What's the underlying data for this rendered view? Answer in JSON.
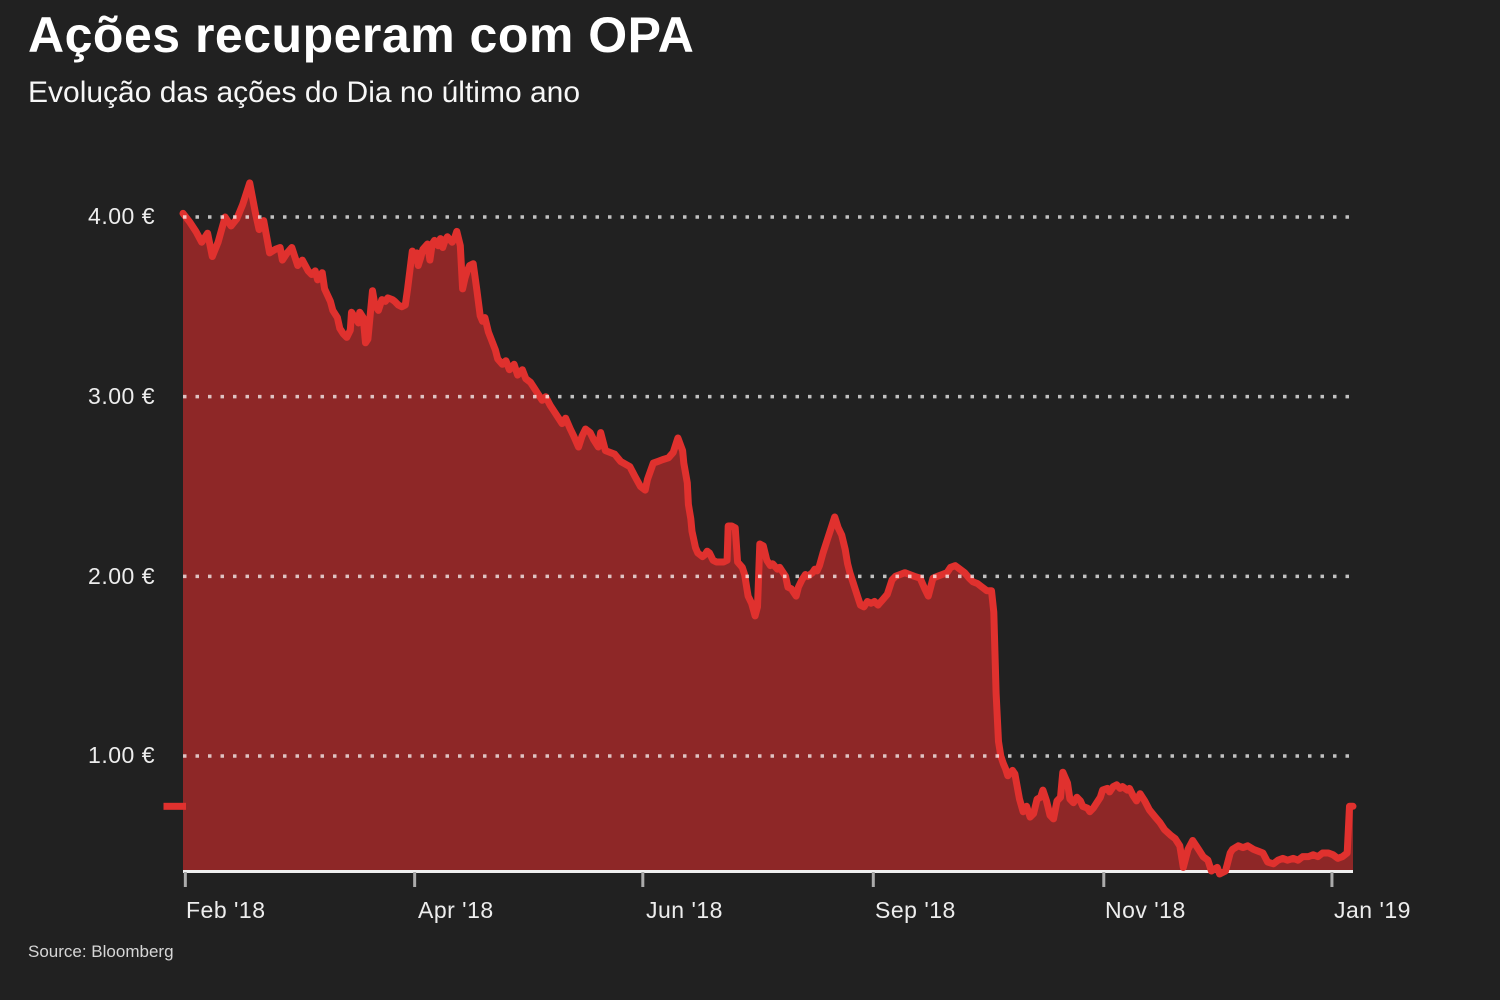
{
  "header": {
    "title": "Ações recuperam com OPA",
    "subtitle": "Evolução das ações do Dia no último ano"
  },
  "footer": {
    "source": "Source: Bloomberg"
  },
  "colors": {
    "background": "#212121",
    "line": "#e0312e",
    "fill": "#8e2727",
    "grid": "rgba(255,255,255,0.72)",
    "axis": "#f0f0f0",
    "tick": "#ababab",
    "text": "#ffffff"
  },
  "chart_data": {
    "type": "area",
    "title": "Ações recuperam com OPA",
    "subtitle": "Evolução das ações do Dia no último ano",
    "currency": "EUR",
    "ylim": [
      0.35,
      4.26
    ],
    "grid": "dotted-horizontal",
    "last_price": 0.72,
    "y_ticks": [
      {
        "value": 4.0,
        "label": "4.00 €"
      },
      {
        "value": 3.0,
        "label": "3.00 €"
      },
      {
        "value": 2.0,
        "label": "2.00 €"
      },
      {
        "value": 1.0,
        "label": "1.00 €"
      }
    ],
    "x_ticks": [
      {
        "f": 0.002,
        "label": "Feb '18"
      },
      {
        "f": 0.198,
        "label": "Apr '18"
      },
      {
        "f": 0.393,
        "label": "Jun '18"
      },
      {
        "f": 0.59,
        "label": "Sep '18"
      },
      {
        "f": 0.787,
        "label": "Nov '18"
      },
      {
        "f": 0.982,
        "label": "Jan '19"
      }
    ],
    "points": [
      [
        0,
        4.02
      ],
      [
        0.006,
        3.97
      ],
      [
        0.011,
        3.92
      ],
      [
        0.016,
        3.86
      ],
      [
        0.021,
        3.91
      ],
      [
        0.025,
        3.78
      ],
      [
        0.03,
        3.86
      ],
      [
        0.036,
        4.0
      ],
      [
        0.041,
        3.95
      ],
      [
        0.046,
        3.99
      ],
      [
        0.051,
        4.07
      ],
      [
        0.057,
        4.19
      ],
      [
        0.062,
        4.02
      ],
      [
        0.065,
        3.93
      ],
      [
        0.069,
        3.98
      ],
      [
        0.074,
        3.8
      ],
      [
        0.079,
        3.82
      ],
      [
        0.083,
        3.83
      ],
      [
        0.085,
        3.76
      ],
      [
        0.089,
        3.8
      ],
      [
        0.093,
        3.83
      ],
      [
        0.098,
        3.73
      ],
      [
        0.102,
        3.76
      ],
      [
        0.107,
        3.7
      ],
      [
        0.11,
        3.68
      ],
      [
        0.113,
        3.7
      ],
      [
        0.115,
        3.65
      ],
      [
        0.119,
        3.69
      ],
      [
        0.121,
        3.6
      ],
      [
        0.126,
        3.53
      ],
      [
        0.128,
        3.48
      ],
      [
        0.132,
        3.44
      ],
      [
        0.134,
        3.38
      ],
      [
        0.137,
        3.35
      ],
      [
        0.14,
        3.33
      ],
      [
        0.143,
        3.37
      ],
      [
        0.144,
        3.47
      ],
      [
        0.147,
        3.44
      ],
      [
        0.15,
        3.41
      ],
      [
        0.151,
        3.47
      ],
      [
        0.154,
        3.44
      ],
      [
        0.156,
        3.3
      ],
      [
        0.158,
        3.32
      ],
      [
        0.162,
        3.59
      ],
      [
        0.164,
        3.51
      ],
      [
        0.167,
        3.48
      ],
      [
        0.17,
        3.54
      ],
      [
        0.173,
        3.53
      ],
      [
        0.175,
        3.55
      ],
      [
        0.179,
        3.54
      ],
      [
        0.181,
        3.53
      ],
      [
        0.184,
        3.51
      ],
      [
        0.187,
        3.5
      ],
      [
        0.19,
        3.51
      ],
      [
        0.192,
        3.6
      ],
      [
        0.196,
        3.81
      ],
      [
        0.198,
        3.76
      ],
      [
        0.2,
        3.8
      ],
      [
        0.201,
        3.73
      ],
      [
        0.203,
        3.77
      ],
      [
        0.205,
        3.82
      ],
      [
        0.209,
        3.85
      ],
      [
        0.211,
        3.76
      ],
      [
        0.213,
        3.85
      ],
      [
        0.215,
        3.87
      ],
      [
        0.218,
        3.84
      ],
      [
        0.22,
        3.88
      ],
      [
        0.222,
        3.83
      ],
      [
        0.224,
        3.87
      ],
      [
        0.226,
        3.89
      ],
      [
        0.23,
        3.86
      ],
      [
        0.232,
        3.88
      ],
      [
        0.234,
        3.92
      ],
      [
        0.237,
        3.84
      ],
      [
        0.239,
        3.6
      ],
      [
        0.241,
        3.66
      ],
      [
        0.243,
        3.7
      ],
      [
        0.245,
        3.73
      ],
      [
        0.248,
        3.74
      ],
      [
        0.251,
        3.6
      ],
      [
        0.254,
        3.45
      ],
      [
        0.256,
        3.42
      ],
      [
        0.258,
        3.44
      ],
      [
        0.261,
        3.36
      ],
      [
        0.264,
        3.31
      ],
      [
        0.267,
        3.26
      ],
      [
        0.269,
        3.21
      ],
      [
        0.273,
        3.18
      ],
      [
        0.276,
        3.2
      ],
      [
        0.279,
        3.15
      ],
      [
        0.283,
        3.18
      ],
      [
        0.286,
        3.12
      ],
      [
        0.29,
        3.15
      ],
      [
        0.293,
        3.1
      ],
      [
        0.297,
        3.08
      ],
      [
        0.3,
        3.05
      ],
      [
        0.303,
        3.02
      ],
      [
        0.307,
        2.98
      ],
      [
        0.31,
        3.0
      ],
      [
        0.314,
        2.95
      ],
      [
        0.317,
        2.92
      ],
      [
        0.321,
        2.88
      ],
      [
        0.324,
        2.85
      ],
      [
        0.327,
        2.88
      ],
      [
        0.331,
        2.82
      ],
      [
        0.334,
        2.78
      ],
      [
        0.338,
        2.72
      ],
      [
        0.341,
        2.78
      ],
      [
        0.344,
        2.82
      ],
      [
        0.348,
        2.8
      ],
      [
        0.351,
        2.76
      ],
      [
        0.355,
        2.72
      ],
      [
        0.357,
        2.8
      ],
      [
        0.361,
        2.7
      ],
      [
        0.369,
        2.68
      ],
      [
        0.374,
        2.64
      ],
      [
        0.382,
        2.61
      ],
      [
        0.386,
        2.56
      ],
      [
        0.391,
        2.5
      ],
      [
        0.395,
        2.48
      ],
      [
        0.397,
        2.54
      ],
      [
        0.402,
        2.63
      ],
      [
        0.406,
        2.64
      ],
      [
        0.41,
        2.65
      ],
      [
        0.415,
        2.66
      ],
      [
        0.419,
        2.69
      ],
      [
        0.423,
        2.77
      ],
      [
        0.427,
        2.7
      ],
      [
        0.428,
        2.63
      ],
      [
        0.431,
        2.52
      ],
      [
        0.432,
        2.4
      ],
      [
        0.434,
        2.32
      ],
      [
        0.435,
        2.25
      ],
      [
        0.438,
        2.16
      ],
      [
        0.44,
        2.13
      ],
      [
        0.444,
        2.11
      ],
      [
        0.446,
        2.12
      ],
      [
        0.448,
        2.14
      ],
      [
        0.45,
        2.13
      ],
      [
        0.453,
        2.09
      ],
      [
        0.456,
        2.08
      ],
      [
        0.462,
        2.08
      ],
      [
        0.465,
        2.09
      ],
      [
        0.466,
        2.28
      ],
      [
        0.469,
        2.28
      ],
      [
        0.472,
        2.27
      ],
      [
        0.474,
        2.08
      ],
      [
        0.478,
        2.05
      ],
      [
        0.48,
        2.01
      ],
      [
        0.483,
        1.89
      ],
      [
        0.486,
        1.85
      ],
      [
        0.489,
        1.78
      ],
      [
        0.491,
        1.83
      ],
      [
        0.493,
        2.18
      ],
      [
        0.496,
        2.17
      ],
      [
        0.499,
        2.09
      ],
      [
        0.502,
        2.06
      ],
      [
        0.504,
        2.07
      ],
      [
        0.508,
        2.04
      ],
      [
        0.51,
        2.05
      ],
      [
        0.513,
        2.02
      ],
      [
        0.515,
        2.0
      ],
      [
        0.517,
        1.94
      ],
      [
        0.52,
        1.93
      ],
      [
        0.522,
        1.91
      ],
      [
        0.524,
        1.89
      ],
      [
        0.526,
        1.94
      ],
      [
        0.529,
        1.98
      ],
      [
        0.532,
        2.01
      ],
      [
        0.534,
        2.0
      ],
      [
        0.538,
        2.02
      ],
      [
        0.54,
        2.04
      ],
      [
        0.542,
        2.03
      ],
      [
        0.544,
        2.06
      ],
      [
        0.547,
        2.13
      ],
      [
        0.55,
        2.19
      ],
      [
        0.553,
        2.25
      ],
      [
        0.557,
        2.33
      ],
      [
        0.56,
        2.27
      ],
      [
        0.563,
        2.23
      ],
      [
        0.566,
        2.15
      ],
      [
        0.568,
        2.07
      ],
      [
        0.57,
        2.02
      ],
      [
        0.573,
        1.96
      ],
      [
        0.576,
        1.9
      ],
      [
        0.579,
        1.84
      ],
      [
        0.582,
        1.83
      ],
      [
        0.585,
        1.86
      ],
      [
        0.588,
        1.85
      ],
      [
        0.591,
        1.86
      ],
      [
        0.594,
        1.84
      ],
      [
        0.598,
        1.87
      ],
      [
        0.602,
        1.9
      ],
      [
        0.606,
        1.98
      ],
      [
        0.609,
        2.0
      ],
      [
        0.613,
        2.01
      ],
      [
        0.617,
        2.02
      ],
      [
        0.621,
        2.01
      ],
      [
        0.625,
        2.0
      ],
      [
        0.63,
        1.99
      ],
      [
        0.634,
        1.93
      ],
      [
        0.637,
        1.89
      ],
      [
        0.641,
        1.99
      ],
      [
        0.645,
        2.0
      ],
      [
        0.649,
        2.01
      ],
      [
        0.653,
        2.02
      ],
      [
        0.656,
        2.05
      ],
      [
        0.66,
        2.06
      ],
      [
        0.664,
        2.04
      ],
      [
        0.668,
        2.02
      ],
      [
        0.672,
        1.99
      ],
      [
        0.675,
        1.97
      ],
      [
        0.679,
        1.96
      ],
      [
        0.683,
        1.94
      ],
      [
        0.687,
        1.92
      ],
      [
        0.691,
        1.92
      ],
      [
        0.693,
        1.8
      ],
      [
        0.695,
        1.35
      ],
      [
        0.697,
        1.08
      ],
      [
        0.699,
        1.0
      ],
      [
        0.701,
        0.96
      ],
      [
        0.703,
        0.93
      ],
      [
        0.705,
        0.89
      ],
      [
        0.709,
        0.92
      ],
      [
        0.711,
        0.9
      ],
      [
        0.715,
        0.76
      ],
      [
        0.718,
        0.69
      ],
      [
        0.721,
        0.72
      ],
      [
        0.724,
        0.66
      ],
      [
        0.727,
        0.68
      ],
      [
        0.73,
        0.76
      ],
      [
        0.733,
        0.77
      ],
      [
        0.735,
        0.81
      ],
      [
        0.738,
        0.75
      ],
      [
        0.741,
        0.67
      ],
      [
        0.744,
        0.65
      ],
      [
        0.747,
        0.75
      ],
      [
        0.75,
        0.77
      ],
      [
        0.752,
        0.91
      ],
      [
        0.756,
        0.85
      ],
      [
        0.758,
        0.76
      ],
      [
        0.761,
        0.74
      ],
      [
        0.764,
        0.77
      ],
      [
        0.767,
        0.75
      ],
      [
        0.769,
        0.72
      ],
      [
        0.773,
        0.71
      ],
      [
        0.775,
        0.69
      ],
      [
        0.778,
        0.71
      ],
      [
        0.781,
        0.74
      ],
      [
        0.784,
        0.77
      ],
      [
        0.786,
        0.81
      ],
      [
        0.79,
        0.82
      ],
      [
        0.792,
        0.8
      ],
      [
        0.795,
        0.83
      ],
      [
        0.798,
        0.84
      ],
      [
        0.801,
        0.82
      ],
      [
        0.803,
        0.83
      ],
      [
        0.807,
        0.81
      ],
      [
        0.809,
        0.82
      ],
      [
        0.812,
        0.78
      ],
      [
        0.815,
        0.75
      ],
      [
        0.818,
        0.79
      ],
      [
        0.822,
        0.75
      ],
      [
        0.826,
        0.7
      ],
      [
        0.831,
        0.66
      ],
      [
        0.835,
        0.63
      ],
      [
        0.839,
        0.59
      ],
      [
        0.844,
        0.56
      ],
      [
        0.848,
        0.54
      ],
      [
        0.852,
        0.5
      ],
      [
        0.855,
        0.38
      ],
      [
        0.859,
        0.48
      ],
      [
        0.863,
        0.53
      ],
      [
        0.868,
        0.48
      ],
      [
        0.872,
        0.44
      ],
      [
        0.876,
        0.42
      ],
      [
        0.879,
        0.36
      ],
      [
        0.884,
        0.38
      ],
      [
        0.886,
        0.34
      ],
      [
        0.891,
        0.36
      ],
      [
        0.895,
        0.46
      ],
      [
        0.897,
        0.48
      ],
      [
        0.902,
        0.5
      ],
      [
        0.906,
        0.49
      ],
      [
        0.91,
        0.5
      ],
      [
        0.915,
        0.48
      ],
      [
        0.919,
        0.47
      ],
      [
        0.923,
        0.46
      ],
      [
        0.927,
        0.41
      ],
      [
        0.932,
        0.4
      ],
      [
        0.936,
        0.42
      ],
      [
        0.94,
        0.43
      ],
      [
        0.944,
        0.42
      ],
      [
        0.949,
        0.43
      ],
      [
        0.953,
        0.42
      ],
      [
        0.957,
        0.44
      ],
      [
        0.962,
        0.44
      ],
      [
        0.966,
        0.45
      ],
      [
        0.97,
        0.44
      ],
      [
        0.974,
        0.46
      ],
      [
        0.979,
        0.46
      ],
      [
        0.983,
        0.45
      ],
      [
        0.987,
        0.43
      ],
      [
        0.991,
        0.44
      ],
      [
        0.995,
        0.46
      ],
      [
        0.997,
        0.72
      ],
      [
        1,
        0.72
      ]
    ]
  }
}
